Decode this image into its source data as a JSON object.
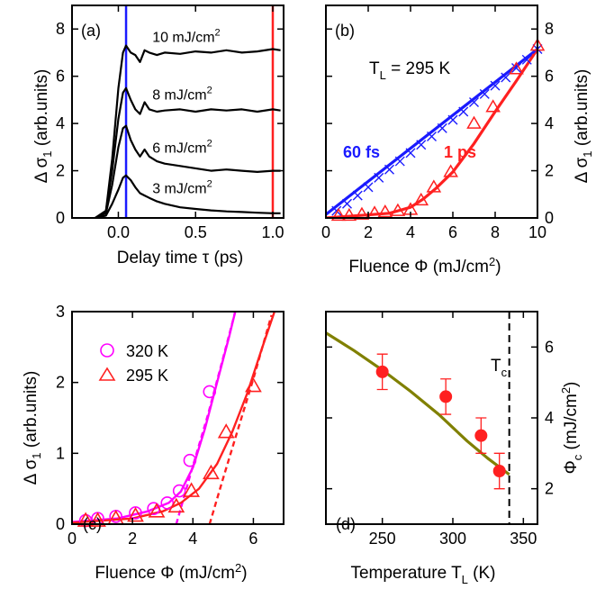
{
  "chart_data": [
    {
      "panel": "(a)",
      "type": "line",
      "xlabel": "Delay time τ (ps)",
      "ylabel": "Δ σ1 (arb.units)",
      "xlim": [
        -0.3,
        1.07
      ],
      "ylim": [
        0,
        9
      ],
      "xticks": [
        0.0,
        0.5,
        1.0
      ],
      "xtick_labels": [
        "0.0",
        "0.5",
        "1.0"
      ],
      "yticks": [
        0,
        2,
        4,
        6,
        8
      ],
      "ytick_labels": [
        "0",
        "2",
        "4",
        "6",
        "8"
      ],
      "vlines": [
        {
          "x": 0.05,
          "color": "#1a1aff"
        },
        {
          "x": 1.0,
          "color": "#ff2020"
        }
      ],
      "series": [
        {
          "name": "10 mJ/cm2",
          "label_text": "10 mJ/cm",
          "label_sup": "2",
          "color": "#000000",
          "x": [
            -0.15,
            -0.08,
            -0.04,
            0.0,
            0.03,
            0.05,
            0.08,
            0.11,
            0.14,
            0.17,
            0.2,
            0.25,
            0.3,
            0.4,
            0.5,
            0.6,
            0.7,
            0.8,
            0.9,
            1.0,
            1.05
          ],
          "y": [
            0,
            0.3,
            2.5,
            5.5,
            7.0,
            7.3,
            7.0,
            6.9,
            6.6,
            7.1,
            7.0,
            6.9,
            7.0,
            6.95,
            7.05,
            7.0,
            7.1,
            7.0,
            7.05,
            7.15,
            7.1
          ]
        },
        {
          "name": "8 mJ/cm2",
          "label_text": "8 mJ/cm",
          "label_sup": "2",
          "color": "#000000",
          "x": [
            -0.15,
            -0.08,
            -0.04,
            0.0,
            0.03,
            0.05,
            0.08,
            0.11,
            0.14,
            0.17,
            0.2,
            0.25,
            0.3,
            0.4,
            0.5,
            0.6,
            0.7,
            0.8,
            0.9,
            1.0,
            1.05
          ],
          "y": [
            0,
            0.3,
            2.0,
            4.2,
            5.3,
            5.5,
            5.0,
            4.6,
            4.4,
            4.9,
            4.6,
            4.5,
            4.55,
            4.6,
            4.5,
            4.6,
            4.55,
            4.6,
            4.5,
            4.6,
            4.55
          ]
        },
        {
          "name": "6 mJ/cm2",
          "label_text": "6 mJ/cm",
          "label_sup": "2",
          "color": "#000000",
          "x": [
            -0.15,
            -0.08,
            -0.04,
            0.0,
            0.03,
            0.05,
            0.08,
            0.11,
            0.14,
            0.17,
            0.2,
            0.25,
            0.3,
            0.4,
            0.5,
            0.6,
            0.7,
            0.8,
            0.9,
            1.0,
            1.05
          ],
          "y": [
            0,
            0.2,
            1.4,
            3.0,
            3.8,
            3.9,
            3.3,
            2.9,
            2.6,
            2.9,
            2.6,
            2.4,
            2.3,
            2.2,
            2.1,
            2.0,
            2.05,
            2.0,
            1.95,
            2.0,
            2.0
          ]
        },
        {
          "name": "3 mJ/cm2",
          "label_text": "3 mJ/cm",
          "label_sup": "2",
          "color": "#000000",
          "x": [
            -0.15,
            -0.08,
            -0.04,
            0.0,
            0.03,
            0.05,
            0.08,
            0.11,
            0.14,
            0.17,
            0.2,
            0.25,
            0.3,
            0.4,
            0.5,
            0.6,
            0.7,
            0.8,
            0.9,
            1.0,
            1.05
          ],
          "y": [
            0,
            0.1,
            0.6,
            1.2,
            1.7,
            1.8,
            1.6,
            1.3,
            1.05,
            0.95,
            0.85,
            0.7,
            0.6,
            0.45,
            0.38,
            0.32,
            0.28,
            0.25,
            0.22,
            0.2,
            0.2
          ]
        }
      ]
    },
    {
      "panel": "(b)",
      "type": "scatter",
      "annotation": "TL = 295 K",
      "annotation_main": "T",
      "annotation_sub": "L",
      "annotation_rest": " = 295 K",
      "xlabel": "Fluence Φ (mJ/cm2)",
      "ylabel": "Δ σ1 (arb.units)",
      "xlim": [
        0,
        10
      ],
      "ylim": [
        0,
        9
      ],
      "xticks": [
        0,
        2,
        4,
        6,
        8,
        10
      ],
      "xtick_labels": [
        "0",
        "2",
        "4",
        "6",
        "8",
        "10"
      ],
      "yticks": [
        0,
        2,
        4,
        6,
        8
      ],
      "ytick_labels": [
        "0",
        "2",
        "4",
        "6",
        "8"
      ],
      "series": [
        {
          "name": "60 fs",
          "color": "#1a1aff",
          "marker": "x",
          "x": [
            0.5,
            1.0,
            1.5,
            2.0,
            2.5,
            3.0,
            3.5,
            4.0,
            4.5,
            5.0,
            5.5,
            6.0,
            6.5,
            7.0,
            7.5,
            8.0,
            8.5,
            9.0,
            9.5,
            10.0
          ],
          "y": [
            0.3,
            0.6,
            0.95,
            1.3,
            1.7,
            2.05,
            2.4,
            2.75,
            3.1,
            3.45,
            3.8,
            4.15,
            4.5,
            4.9,
            5.25,
            5.6,
            5.95,
            6.35,
            6.7,
            7.15
          ],
          "fit_x": [
            0,
            10
          ],
          "fit_y": [
            0.15,
            7.15
          ]
        },
        {
          "name": "1 ps",
          "color": "#ff2020",
          "marker": "triangle",
          "x": [
            0.6,
            1.1,
            1.7,
            2.3,
            2.8,
            3.4,
            4.0,
            4.5,
            5.1,
            5.9,
            7.0,
            7.9,
            9.0,
            10.0
          ],
          "y": [
            0.1,
            0.1,
            0.15,
            0.2,
            0.25,
            0.3,
            0.35,
            0.75,
            1.3,
            1.95,
            4.0,
            4.7,
            6.3,
            7.3
          ],
          "fit_x": [
            0,
            3.0,
            4.0,
            4.6,
            5.2,
            6.0,
            7.0,
            8.0,
            9.0,
            10.0
          ],
          "fit_y": [
            0.0,
            0.2,
            0.45,
            0.8,
            1.25,
            1.95,
            3.15,
            4.5,
            5.8,
            7.15
          ]
        }
      ]
    },
    {
      "panel": "(c)",
      "type": "scatter",
      "xlabel": "Fluence Φ (mJ/cm2)",
      "ylabel": "Δ σ1 (arb.units)",
      "xlim": [
        0,
        7
      ],
      "ylim": [
        0,
        3
      ],
      "xticks": [
        0,
        2,
        4,
        6
      ],
      "xtick_labels": [
        "0",
        "2",
        "4",
        "6"
      ],
      "yticks": [
        0,
        1,
        2,
        3
      ],
      "ytick_labels": [
        "0",
        "1",
        "2",
        "3"
      ],
      "legend": "top-left",
      "series": [
        {
          "name": "320 K",
          "color": "#ff00ff",
          "marker": "circle",
          "x": [
            0.45,
            0.85,
            1.45,
            2.1,
            2.7,
            3.15,
            3.55,
            3.9,
            4.55
          ],
          "y": [
            0.05,
            0.08,
            0.11,
            0.16,
            0.22,
            0.3,
            0.47,
            0.9,
            1.87
          ],
          "fit_x": [
            0,
            1.5,
            2.5,
            3.2,
            3.6,
            4.0,
            4.4,
            4.8,
            5.2,
            5.4
          ],
          "fit_y": [
            0.03,
            0.08,
            0.18,
            0.3,
            0.46,
            0.8,
            1.35,
            2.0,
            2.65,
            3.0
          ],
          "dash_x": [
            3.45,
            3.95,
            4.5,
            5.0,
            5.4
          ],
          "dash_y": [
            0.0,
            0.75,
            1.55,
            2.35,
            3.0
          ]
        },
        {
          "name": "295 K",
          "color": "#ff2020",
          "marker": "triangle",
          "x": [
            0.45,
            0.85,
            1.45,
            2.1,
            2.8,
            3.45,
            3.95,
            4.6,
            5.1,
            6.0
          ],
          "y": [
            0.05,
            0.05,
            0.08,
            0.12,
            0.18,
            0.25,
            0.47,
            0.72,
            1.3,
            1.95
          ],
          "fit_x": [
            0,
            2.0,
            3.0,
            3.6,
            4.2,
            4.8,
            5.3,
            5.8,
            6.3,
            6.7
          ],
          "fit_y": [
            0.02,
            0.08,
            0.18,
            0.3,
            0.5,
            0.85,
            1.3,
            1.85,
            2.5,
            3.0
          ],
          "dash_x": [
            4.55,
            5.0,
            5.5,
            6.0,
            6.6
          ],
          "dash_y": [
            0.0,
            0.65,
            1.35,
            2.05,
            2.95
          ]
        }
      ]
    },
    {
      "panel": "(d)",
      "type": "scatter",
      "xlabel": "Temperature TL (K)",
      "ylabel": "Φc (mJ/cm2)",
      "annotation": "Tc",
      "xlim": [
        210,
        360
      ],
      "ylim": [
        1,
        7
      ],
      "xticks": [
        250,
        300,
        350
      ],
      "xtick_labels": [
        "250",
        "300",
        "350"
      ],
      "yticks": [
        2,
        4,
        6
      ],
      "ytick_labels": [
        "2",
        "4",
        "6"
      ],
      "vline": {
        "x": 340,
        "style": "dashed"
      },
      "series": [
        {
          "name": "data",
          "color": "#ff2020",
          "marker": "filled-circle",
          "x": [
            250,
            295,
            320,
            333
          ],
          "y": [
            5.3,
            4.6,
            3.5,
            2.5
          ],
          "yerr": [
            0.5,
            0.5,
            0.5,
            0.5
          ]
        },
        {
          "name": "fit",
          "color": "#808000",
          "marker": "none",
          "x": [
            210,
            230,
            250,
            270,
            290,
            310,
            325,
            340
          ],
          "y": [
            6.4,
            5.9,
            5.35,
            4.75,
            4.1,
            3.35,
            2.85,
            2.4
          ]
        }
      ]
    }
  ]
}
